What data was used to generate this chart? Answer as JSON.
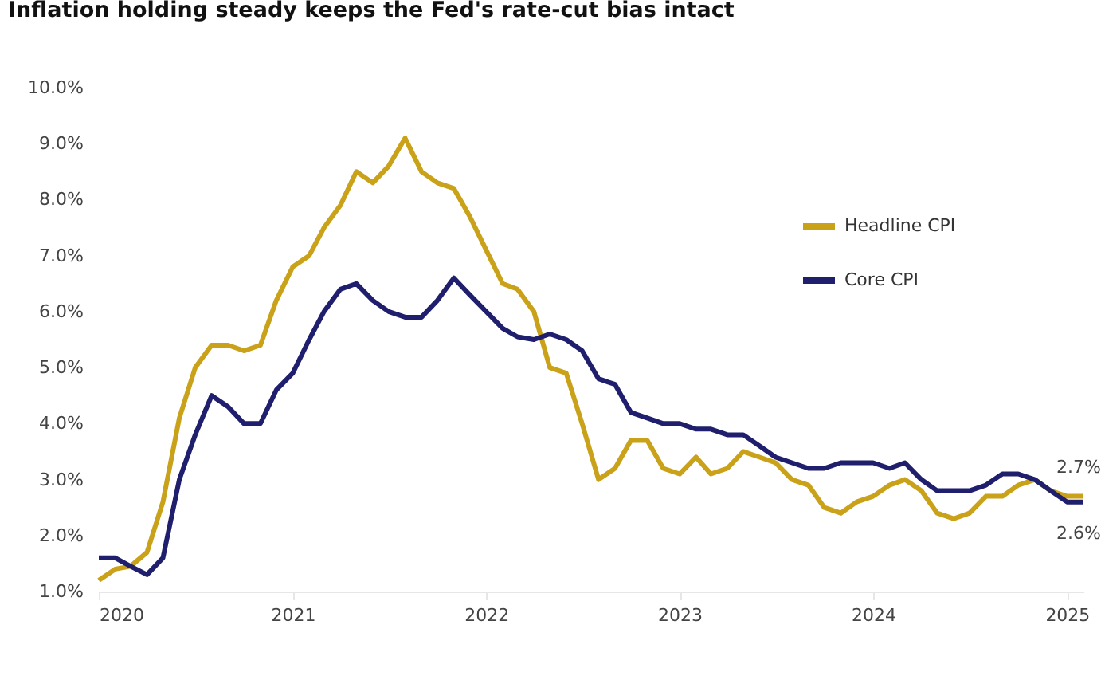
{
  "chart_data": {
    "type": "line",
    "title": "Inflation holding steady keeps the Fed's rate-cut bias intact",
    "x": [
      "2020-01",
      "2020-02",
      "2020-03",
      "2020-04",
      "2020-05",
      "2020-06",
      "2020-07",
      "2020-08",
      "2020-09",
      "2020-10",
      "2020-11",
      "2020-12",
      "2021-01",
      "2021-02",
      "2021-03",
      "2021-04",
      "2021-05",
      "2021-06",
      "2021-07",
      "2021-08",
      "2021-09",
      "2021-10",
      "2021-11",
      "2021-12",
      "2022-01",
      "2022-02",
      "2022-03",
      "2022-04",
      "2022-05",
      "2022-06",
      "2022-07",
      "2022-08",
      "2022-09",
      "2022-10",
      "2022-11",
      "2022-12",
      "2023-01",
      "2023-02",
      "2023-03",
      "2023-04",
      "2023-05",
      "2023-06",
      "2023-07",
      "2023-08",
      "2023-09",
      "2023-10",
      "2023-11",
      "2023-12",
      "2024-01",
      "2024-02",
      "2024-03",
      "2024-04",
      "2024-05",
      "2024-06",
      "2024-07",
      "2024-08",
      "2024-09",
      "2024-10",
      "2024-11",
      "2024-12",
      "2025-01",
      "2025-02"
    ],
    "series": [
      {
        "name": "Headline CPI",
        "color": "#c9a21a",
        "values": [
          1.2,
          1.4,
          1.45,
          1.7,
          2.6,
          4.1,
          5.0,
          5.4,
          5.4,
          5.3,
          5.4,
          6.2,
          6.8,
          7.0,
          7.5,
          7.9,
          8.5,
          8.3,
          8.6,
          9.1,
          8.5,
          8.3,
          8.2,
          7.7,
          7.1,
          6.5,
          6.4,
          6.0,
          5.0,
          4.9,
          4.0,
          3.0,
          3.2,
          3.7,
          3.7,
          3.2,
          3.1,
          3.4,
          3.1,
          3.2,
          3.5,
          3.4,
          3.3,
          3.0,
          2.9,
          2.5,
          2.4,
          2.6,
          2.7,
          2.9,
          3.0,
          2.8,
          2.4,
          2.3,
          2.4,
          2.7,
          2.7,
          2.9,
          3.0,
          2.8,
          2.7,
          2.7
        ]
      },
      {
        "name": "Core CPI",
        "color": "#1f1f6e",
        "values": [
          1.6,
          1.6,
          1.45,
          1.3,
          1.6,
          3.0,
          3.8,
          4.5,
          4.3,
          4.0,
          4.0,
          4.6,
          4.9,
          5.5,
          6.0,
          6.4,
          6.5,
          6.2,
          6.0,
          5.9,
          5.9,
          6.2,
          6.6,
          6.3,
          6.0,
          5.7,
          5.55,
          5.5,
          5.6,
          5.5,
          5.3,
          4.8,
          4.7,
          4.2,
          4.1,
          4.0,
          4.0,
          3.9,
          3.9,
          3.8,
          3.8,
          3.6,
          3.4,
          3.3,
          3.2,
          3.2,
          3.3,
          3.3,
          3.3,
          3.2,
          3.3,
          3.0,
          2.8,
          2.8,
          2.8,
          2.9,
          3.1,
          3.1,
          3.0,
          2.8,
          2.6,
          2.6
        ]
      }
    ],
    "xlim": [
      "2020-01",
      "2025-02"
    ],
    "xticks": [
      "2020",
      "2021",
      "2022",
      "2023",
      "2024",
      "2025"
    ],
    "ylim": [
      1,
      10
    ],
    "yticks": [
      {
        "value": 1,
        "label": "1.0%"
      },
      {
        "value": 2,
        "label": "2.0%"
      },
      {
        "value": 3,
        "label": "3.0%"
      },
      {
        "value": 4,
        "label": "4.0%"
      },
      {
        "value": 5,
        "label": "5.0%"
      },
      {
        "value": 6,
        "label": "6.0%"
      },
      {
        "value": 7,
        "label": "7.0%"
      },
      {
        "value": 8,
        "label": "8.0%"
      },
      {
        "value": 9,
        "label": "9.0%"
      },
      {
        "value": 10,
        "label": "10.0%"
      }
    ],
    "grid": false,
    "legend": "top right",
    "annotations": [
      {
        "text": "2.7%",
        "x": "2025-02",
        "y": 2.7
      },
      {
        "text": "2.6%",
        "x": "2025-02",
        "y": 2.6
      }
    ]
  }
}
